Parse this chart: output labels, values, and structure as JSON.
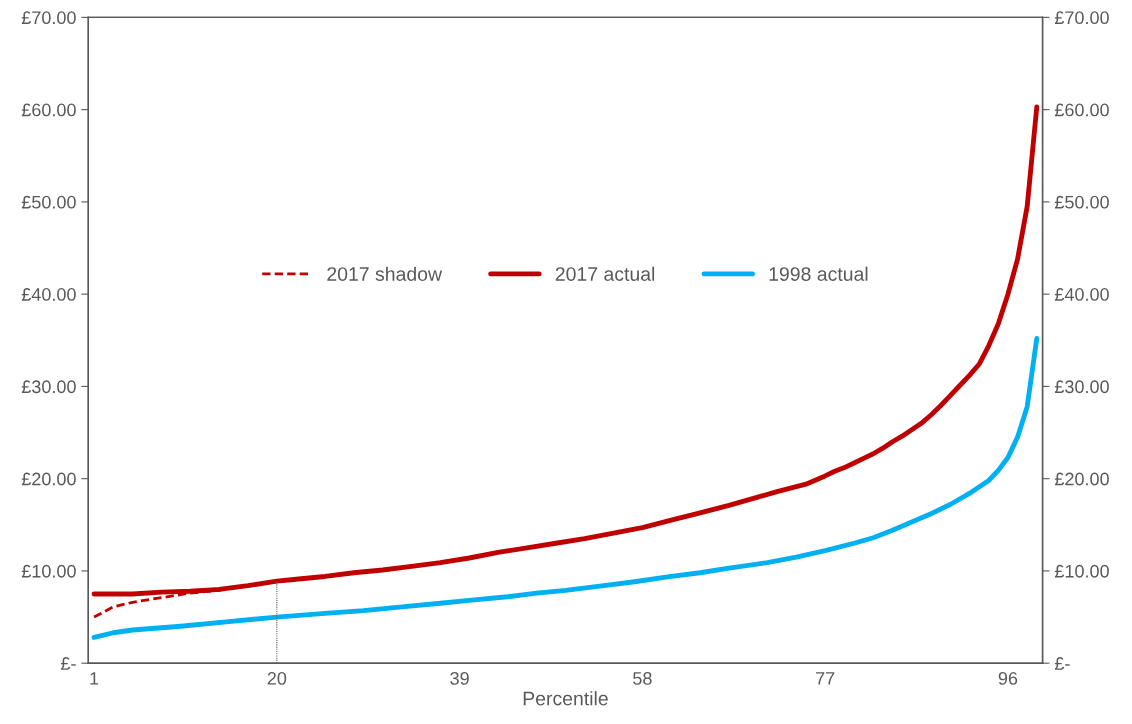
{
  "chart_data": {
    "type": "line",
    "xlabel": "Percentile",
    "xlim": [
      0.4,
      99.6
    ],
    "xticks": [
      1,
      20,
      39,
      58,
      77,
      96
    ],
    "ylim": [
      0,
      70
    ],
    "yticks": [
      {
        "value": 0,
        "label": "£-"
      },
      {
        "value": 10,
        "label": "£10.00"
      },
      {
        "value": 20,
        "label": "£20.00"
      },
      {
        "value": 30,
        "label": "£30.00"
      },
      {
        "value": 40,
        "label": "£40.00"
      },
      {
        "value": 50,
        "label": "£50.00"
      },
      {
        "value": 60,
        "label": "£60.00"
      },
      {
        "value": 70,
        "label": "£70.00"
      }
    ],
    "y2lim": [
      0,
      70
    ],
    "y2ticks": [
      {
        "value": 0,
        "label": "£-"
      },
      {
        "value": 10,
        "label": "£10.00"
      },
      {
        "value": 20,
        "label": "£20.00"
      },
      {
        "value": 30,
        "label": "£30.00"
      },
      {
        "value": 40,
        "label": "£40.00"
      },
      {
        "value": 50,
        "label": "£50.00"
      },
      {
        "value": 60,
        "label": "£60.00"
      },
      {
        "value": 70,
        "label": "£70.00"
      }
    ],
    "grid": false,
    "legend": "center",
    "series": [
      {
        "name": "2017 shadow",
        "color": "#c00000",
        "line_style": "dashed",
        "x": [
          1,
          3,
          5,
          8,
          11,
          14,
          15
        ],
        "values": [
          5.0,
          6.1,
          6.6,
          7.1,
          7.6,
          7.9,
          8.1
        ]
      },
      {
        "name": "2017 actual",
        "color": "#c00000",
        "line_style": "solid",
        "x": [
          1,
          5,
          8,
          11,
          14,
          17,
          20,
          22,
          25,
          28,
          31,
          34,
          37,
          40,
          43,
          46,
          49,
          52,
          55,
          58,
          61,
          64,
          67,
          70,
          72,
          75,
          77,
          78,
          79,
          80,
          81,
          82,
          83,
          84,
          85,
          86,
          87,
          88,
          89,
          90,
          91,
          92,
          93,
          94,
          95,
          96,
          97,
          98,
          99
        ],
        "values": [
          7.5,
          7.5,
          7.7,
          7.8,
          8.0,
          8.4,
          8.9,
          9.1,
          9.4,
          9.8,
          10.1,
          10.5,
          10.9,
          11.4,
          12.0,
          12.5,
          13.0,
          13.5,
          14.1,
          14.7,
          15.5,
          16.3,
          17.1,
          18.0,
          18.6,
          19.4,
          20.3,
          20.8,
          21.2,
          21.7,
          22.2,
          22.7,
          23.3,
          24.0,
          24.6,
          25.3,
          26.0,
          26.9,
          27.9,
          29.0,
          30.1,
          31.2,
          32.4,
          34.4,
          36.8,
          40.0,
          43.8,
          49.5,
          60.3
        ]
      },
      {
        "name": "1998 actual",
        "color": "#00b0f0",
        "line_style": "solid",
        "x": [
          1,
          3,
          5,
          10,
          15,
          20,
          25,
          29,
          33,
          37,
          40,
          44,
          47,
          50,
          54,
          57,
          61,
          64,
          67,
          71,
          74,
          77,
          80,
          82,
          84,
          86,
          88,
          90,
          92,
          94,
          95,
          96,
          97,
          98,
          99
        ],
        "values": [
          2.8,
          3.3,
          3.6,
          4.0,
          4.5,
          5.0,
          5.4,
          5.7,
          6.1,
          6.5,
          6.8,
          7.2,
          7.6,
          7.9,
          8.4,
          8.8,
          9.4,
          9.8,
          10.3,
          10.9,
          11.5,
          12.2,
          13.0,
          13.6,
          14.4,
          15.3,
          16.2,
          17.2,
          18.4,
          19.8,
          20.9,
          22.3,
          24.5,
          27.8,
          35.2
        ]
      },
      {
        "color": "#595959",
        "line_style": "dotted",
        "x": [
          20,
          20
        ],
        "values": [
          0,
          8.9
        ]
      }
    ]
  }
}
